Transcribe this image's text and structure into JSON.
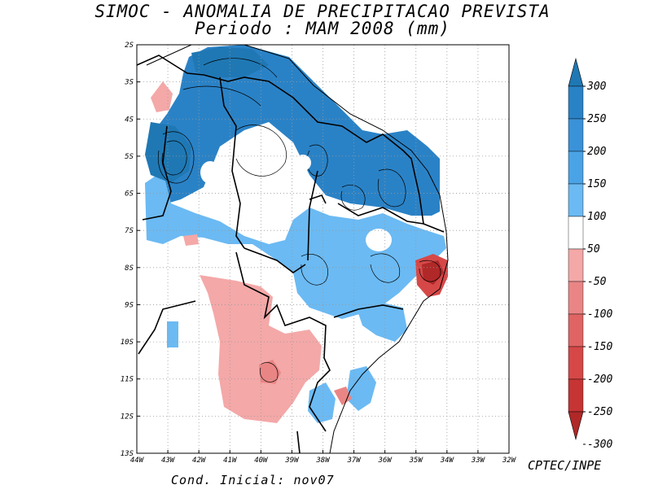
{
  "title": "SIMOC -  ANOMALIA DE PRECIPITACAO PREVISTA",
  "subtitle": "Periodo : MAM 2008 (mm)",
  "credit": "CPTEC/INPE",
  "initial_condition": "Cond. Inicial: nov07",
  "chart_data": {
    "type": "heatmap",
    "variable": "Precipitation anomaly (mm)",
    "period": "MAM 2008",
    "x_ticks": [
      "44W",
      "43W",
      "42W",
      "41W",
      "40W",
      "39W",
      "38W",
      "37W",
      "36W",
      "35W",
      "34W",
      "33W",
      "32W"
    ],
    "y_ticks": [
      "2S",
      "3S",
      "4S",
      "5S",
      "6S",
      "7S",
      "8S",
      "9S",
      "10S",
      "11S",
      "12S",
      "13S"
    ],
    "lon_range": [
      -44,
      -32
    ],
    "lat_range": [
      -13,
      -2
    ],
    "colorbar": {
      "labels": [
        "300",
        "250",
        "200",
        "150",
        "100",
        "50",
        "-50",
        "-100",
        "-150",
        "-200",
        "-250",
        "-300"
      ],
      "colors": [
        "#1f78b4",
        "#2a82c6",
        "#3a92d9",
        "#4aa3e6",
        "#6bbaf3",
        "#ffffff",
        "#f4a8a8",
        "#ea8585",
        "#e06464",
        "#d64848",
        "#c63434",
        "#b02828"
      ]
    },
    "regions": [
      {
        "name": "north-positive-anomaly",
        "level": "100 to 250",
        "color": "#2a82c6"
      },
      {
        "name": "interior-positive-anomaly",
        "level": "50 to 150",
        "color": "#6bbaf3"
      },
      {
        "name": "west-bahia-negative-anomaly",
        "level": "-50 to -100",
        "color": "#f4a8a8"
      },
      {
        "name": "east-coast-negative-anomaly",
        "level": "-200 to -300",
        "color": "#c63434"
      }
    ]
  }
}
